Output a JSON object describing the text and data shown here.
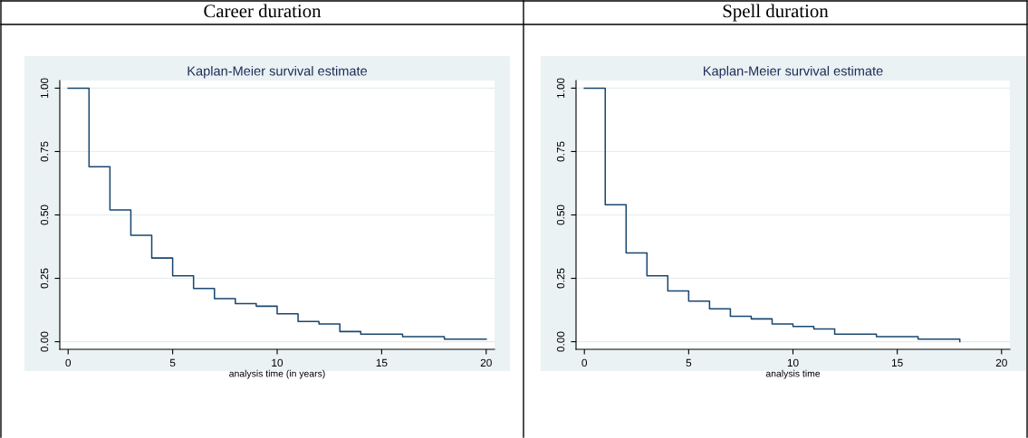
{
  "chart_data": [
    {
      "type": "step",
      "title": "Career duration",
      "subtitle": "Kaplan-Meier survival estimate",
      "xlabel": "analysis time (in years)",
      "x": [
        0,
        1,
        2,
        3,
        4,
        5,
        6,
        7,
        8,
        9,
        10,
        11,
        12,
        13,
        14,
        15,
        16,
        17,
        18,
        20
      ],
      "series": [
        {
          "color": "#1a476f",
          "values": [
            1.0,
            0.69,
            0.52,
            0.42,
            0.33,
            0.26,
            0.21,
            0.17,
            0.15,
            0.14,
            0.11,
            0.08,
            0.07,
            0.04,
            0.03,
            0.03,
            0.02,
            0.02,
            0.01,
            0.01
          ]
        }
      ],
      "xlim": [
        -0.4,
        20.4
      ],
      "ylim": [
        -0.03,
        1.03
      ],
      "xticks": [
        0,
        5,
        10,
        15,
        20
      ],
      "yticks": [
        {
          "value": 0,
          "label": "0.00"
        },
        {
          "value": 0.25,
          "label": "0.25"
        },
        {
          "value": 0.5,
          "label": "0.50"
        },
        {
          "value": 0.75,
          "label": "0.75"
        },
        {
          "value": 1,
          "label": "1.00"
        }
      ],
      "grid": "y"
    },
    {
      "type": "step",
      "title": "Spell duration",
      "subtitle": "Kaplan-Meier survival estimate",
      "xlabel": "analysis time",
      "x": [
        0,
        1,
        2,
        3,
        4,
        5,
        6,
        7,
        8,
        9,
        10,
        11,
        12,
        13,
        14,
        15,
        16,
        17,
        18
      ],
      "series": [
        {
          "color": "#1a476f",
          "values": [
            1.0,
            0.54,
            0.35,
            0.26,
            0.2,
            0.16,
            0.13,
            0.1,
            0.09,
            0.07,
            0.06,
            0.05,
            0.03,
            0.03,
            0.02,
            0.02,
            0.01,
            0.01,
            0.0
          ]
        }
      ],
      "xlim": [
        -0.4,
        20.4
      ],
      "ylim": [
        -0.03,
        1.03
      ],
      "xticks": [
        0,
        5,
        10,
        15,
        20
      ],
      "yticks": [
        {
          "value": 0,
          "label": "0.00"
        },
        {
          "value": 0.25,
          "label": "0.25"
        },
        {
          "value": 0.5,
          "label": "0.50"
        },
        {
          "value": 0.75,
          "label": "0.75"
        },
        {
          "value": 1,
          "label": "1.00"
        }
      ],
      "grid": "y"
    }
  ]
}
